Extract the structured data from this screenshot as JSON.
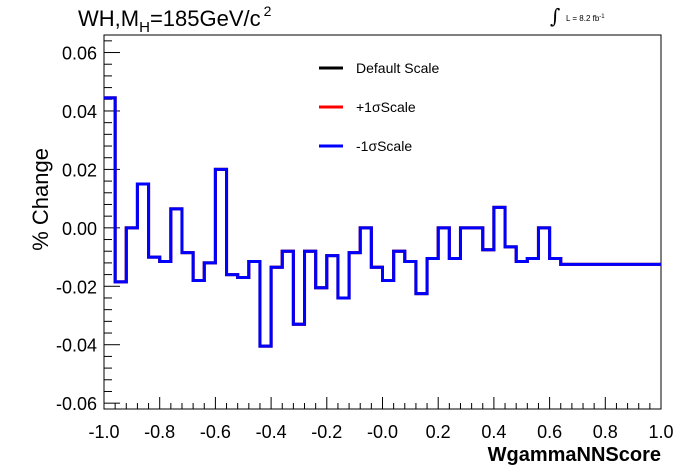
{
  "title": {
    "prefix": "WH,M",
    "sub": "H",
    "value": "=185GeV/c",
    "sup": "2"
  },
  "lumi": {
    "symbol": "∫",
    "text": "L = 8.2 fb",
    "sup": "-1"
  },
  "chart_data": {
    "type": "line",
    "style": "step-histogram",
    "xlabel": "WgammaNNScore",
    "ylabel": "% Change",
    "xlim": [
      -1.0,
      1.0
    ],
    "ylim": [
      -0.062,
      0.066
    ],
    "x_ticks": [
      "-1.0",
      "-0.8",
      "-0.6",
      "-0.4",
      "-0.2",
      "-0.0",
      "0.2",
      "0.4",
      "0.6",
      "0.8",
      "1.0"
    ],
    "x_tick_values": [
      -1.0,
      -0.8,
      -0.6,
      -0.4,
      -0.2,
      0.0,
      0.2,
      0.4,
      0.6,
      0.8,
      1.0
    ],
    "y_ticks": [
      "-0.06",
      "-0.04",
      "-0.02",
      "0.00",
      "0.02",
      "0.04",
      "0.06"
    ],
    "y_tick_values": [
      -0.06,
      -0.04,
      -0.02,
      0.0,
      0.02,
      0.04,
      0.06
    ],
    "bin_edges": [
      -1.0,
      -0.96,
      -0.92,
      -0.88,
      -0.84,
      -0.8,
      -0.76,
      -0.72,
      -0.68,
      -0.64,
      -0.6,
      -0.56,
      -0.52,
      -0.48,
      -0.44,
      -0.4,
      -0.36,
      -0.32,
      -0.28,
      -0.24,
      -0.2,
      -0.16,
      -0.12,
      -0.08,
      -0.04,
      0.0,
      0.04,
      0.08,
      0.12,
      0.16,
      0.2,
      0.24,
      0.28,
      0.32,
      0.36,
      0.4,
      0.44,
      0.48,
      0.52,
      0.56,
      0.6,
      0.64,
      0.68,
      0.72,
      0.76,
      0.8,
      0.84,
      0.88,
      0.92,
      0.96,
      1.0
    ],
    "series": [
      {
        "name": "Default Scale",
        "color": "#000000",
        "values": [
          0.0445,
          -0.0185,
          0.0,
          0.015,
          -0.01,
          -0.0115,
          0.0065,
          -0.0085,
          -0.018,
          -0.012,
          0.02,
          -0.016,
          -0.017,
          -0.0115,
          -0.0405,
          -0.0135,
          -0.008,
          -0.033,
          -0.008,
          -0.0205,
          -0.0095,
          -0.024,
          -0.0085,
          -0.0,
          -0.0135,
          -0.018,
          -0.008,
          -0.0115,
          -0.0225,
          -0.0105,
          -0.0,
          -0.0105,
          0.0,
          0.0,
          -0.0075,
          0.007,
          -0.0065,
          -0.0115,
          -0.0105,
          -0.0,
          -0.0105,
          -0.0125,
          -0.0125,
          -0.0125,
          -0.0125,
          -0.0125,
          -0.0125,
          -0.0125,
          -0.0125,
          -0.0125
        ]
      },
      {
        "name": "+1σScale",
        "color": "#ff0000",
        "values": [
          0.0445,
          -0.0185,
          0.0,
          0.015,
          -0.01,
          -0.0115,
          0.0065,
          -0.0085,
          -0.018,
          -0.012,
          0.02,
          -0.016,
          -0.017,
          -0.0115,
          -0.0405,
          -0.0135,
          -0.008,
          -0.033,
          -0.008,
          -0.0205,
          -0.0095,
          -0.024,
          -0.0085,
          -0.0,
          -0.0135,
          -0.018,
          -0.008,
          -0.0115,
          -0.0225,
          -0.0105,
          -0.0,
          -0.0105,
          0.0,
          0.0,
          -0.0075,
          0.007,
          -0.0065,
          -0.0115,
          -0.0105,
          -0.0,
          -0.0105,
          -0.0125,
          -0.0125,
          -0.0125,
          -0.0125,
          -0.0125,
          -0.0125,
          -0.0125,
          -0.0125,
          -0.0125
        ]
      },
      {
        "name": "-1σScale",
        "color": "#0000ff",
        "values": [
          0.0445,
          -0.0185,
          0.0,
          0.015,
          -0.01,
          -0.0115,
          0.0065,
          -0.0085,
          -0.018,
          -0.012,
          0.02,
          -0.016,
          -0.017,
          -0.0115,
          -0.0405,
          -0.0135,
          -0.008,
          -0.033,
          -0.008,
          -0.0205,
          -0.0095,
          -0.024,
          -0.0085,
          -0.0,
          -0.0135,
          -0.018,
          -0.008,
          -0.0115,
          -0.0225,
          -0.0105,
          -0.0,
          -0.0105,
          0.0,
          0.0,
          -0.0075,
          0.007,
          -0.0065,
          -0.0115,
          -0.0105,
          -0.0,
          -0.0105,
          -0.0125,
          -0.0125,
          -0.0125,
          -0.0125,
          -0.0125,
          -0.0125,
          -0.0125,
          -0.0125,
          -0.0125
        ]
      }
    ],
    "legend_position": "top-center",
    "grid": false
  }
}
